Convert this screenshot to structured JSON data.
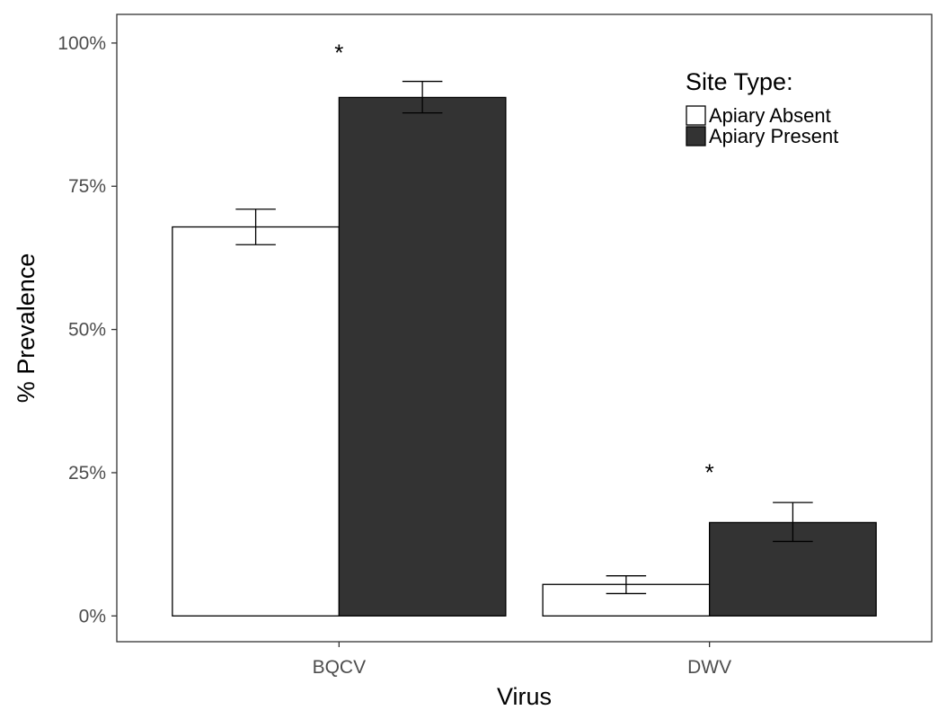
{
  "chart_data": {
    "type": "bar",
    "title": "",
    "xlabel": "Virus",
    "ylabel": "% Prevalence",
    "categories": [
      "BQCV",
      "DWV"
    ],
    "yticks": [
      0,
      25,
      50,
      75,
      100
    ],
    "ytick_labels": [
      "0%",
      "25%",
      "50%",
      "75%",
      "100%"
    ],
    "ylim": [
      -4.5,
      105
    ],
    "legend": {
      "title": "Site Type:",
      "placement": "top-right"
    },
    "series": [
      {
        "name": "Apiary Absent",
        "color": "#ffffff",
        "values": [
          67.9,
          5.5
        ],
        "error_low": [
          64.8,
          3.9
        ],
        "error_high": [
          71.0,
          7.0
        ]
      },
      {
        "name": "Apiary Present",
        "color": "#333333",
        "values": [
          90.5,
          16.3
        ],
        "error_low": [
          87.8,
          13.0
        ],
        "error_high": [
          93.3,
          19.8
        ]
      }
    ],
    "annotations": [
      {
        "text": "*",
        "category": "BQCV",
        "y": 98.5
      },
      {
        "text": "*",
        "category": "DWV",
        "y": 25.2
      }
    ],
    "grid": false
  }
}
